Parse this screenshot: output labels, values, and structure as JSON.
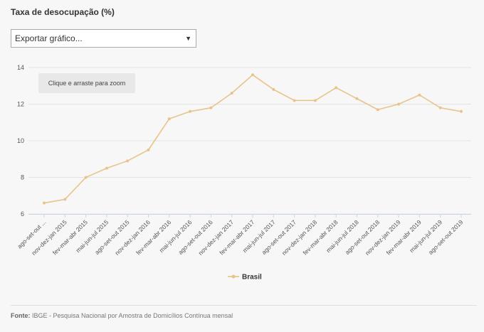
{
  "title": "Taxa de desocupação (%)",
  "export_select": {
    "value": "Exportar gráfico..."
  },
  "zoom_hint": "Clique e arraste para zoom",
  "source": {
    "label": "Fonte:",
    "text": " IBGE - Pesquisa Nacional por Amostra de Domicílios Contínua mensal"
  },
  "chart_data": {
    "type": "line",
    "title": "Taxa de desocupação (%)",
    "xlabel": "",
    "ylabel": "",
    "ylim": [
      6,
      14
    ],
    "yticks": [
      6,
      8,
      10,
      12,
      14
    ],
    "grid": true,
    "legend": "bottom-center",
    "categories": [
      "ago-set-out ...",
      "nov-dez-jan 2015",
      "fev-mar-abr 2015",
      "mai-jun-jul 2015",
      "ago-set-out 2015",
      "nov-dez-jan 2016",
      "fev-mar-abr 2016",
      "mai-jun-jul 2016",
      "ago-set-out 2016",
      "nov-dez-jan 2017",
      "fev-mar-abr 2017",
      "mai-jun-jul 2017",
      "ago-set-out 2017",
      "nov-dez-jan 2018",
      "fev-mar-abr 2018",
      "mai-jun-jul 2018",
      "ago-set-out 2018",
      "nov-dez-jan 2019",
      "fev-mar-abr 2019",
      "mai-jun-jul 2019",
      "ago-set-out 2019"
    ],
    "series": [
      {
        "name": "Brasil",
        "color": "#e8c48a",
        "values": [
          6.6,
          6.8,
          8.0,
          8.5,
          8.9,
          9.5,
          11.2,
          11.6,
          11.8,
          12.6,
          13.6,
          12.8,
          12.2,
          12.2,
          12.9,
          12.3,
          11.7,
          12.0,
          12.5,
          11.8,
          11.6
        ]
      }
    ]
  }
}
